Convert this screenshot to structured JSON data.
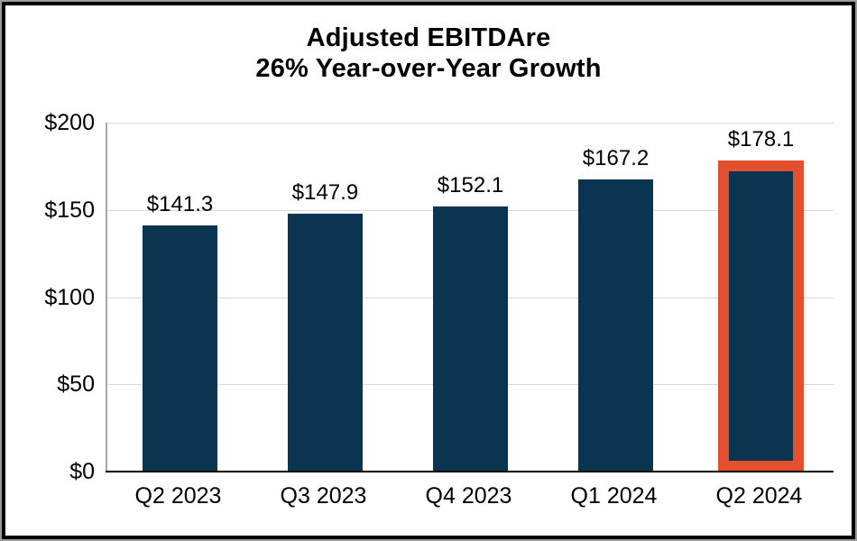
{
  "title": {
    "line1": "Adjusted EBITDAre",
    "line2": "26% Year-over-Year Growth"
  },
  "colors": {
    "bar_fill": "#0A3450",
    "highlight_border": "#E4502E",
    "gridline": "#D9D9D9",
    "plot_edge": "#A6A6A6",
    "axis_line": "#000000",
    "text": "#000000",
    "background": "#FFFFFF",
    "frame_border": "#000000"
  },
  "chart_data": {
    "type": "bar",
    "title": "Adjusted EBITDAre",
    "subtitle": "26% Year-over-Year Growth",
    "categories": [
      "Q2 2023",
      "Q3 2023",
      "Q4 2023",
      "Q1 2024",
      "Q2 2024"
    ],
    "values": [
      141.3,
      147.9,
      152.1,
      167.2,
      178.1
    ],
    "data_labels": [
      "$141.3",
      "$147.9",
      "$152.1",
      "$167.2",
      "$178.1"
    ],
    "y_ticks": [
      {
        "label": "$0",
        "value": 0
      },
      {
        "label": "$50",
        "value": 50
      },
      {
        "label": "$100",
        "value": 100
      },
      {
        "label": "$150",
        "value": 150
      },
      {
        "label": "$200",
        "value": 200
      }
    ],
    "ylim": [
      0,
      200
    ],
    "grid": "horizontal",
    "legend": "none",
    "highlighted_index": 4,
    "highlighted_category": "Q2 2024"
  }
}
